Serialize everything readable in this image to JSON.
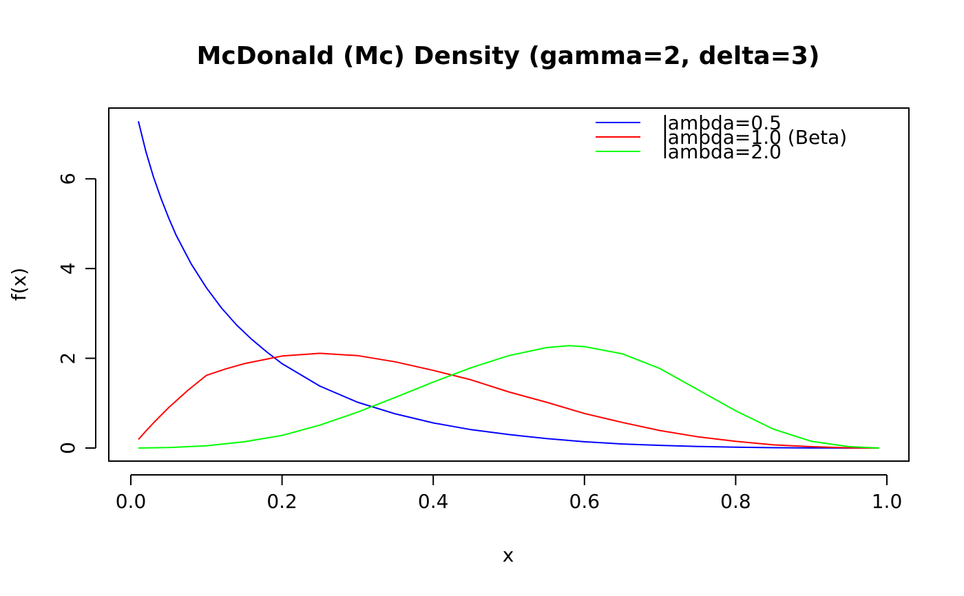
{
  "chart_data": {
    "type": "line",
    "title": "McDonald (Mc) Density (gamma=2, delta=3)",
    "xlabel": "x",
    "ylabel": "f(x)",
    "xlim": [
      0.0,
      1.0
    ],
    "ylim": [
      0,
      7.3
    ],
    "x_ticks": [
      "0.0",
      "0.2",
      "0.4",
      "0.6",
      "0.8",
      "1.0"
    ],
    "y_ticks": [
      "0",
      "2",
      "4",
      "6"
    ],
    "grid": false,
    "legend_position": "top-right",
    "series": [
      {
        "name": "lambda=0.5",
        "color": "#0000ff",
        "x": [
          0.01,
          0.02,
          0.03,
          0.04,
          0.05,
          0.06,
          0.08,
          0.1,
          0.12,
          0.14,
          0.16,
          0.18,
          0.2,
          0.25,
          0.3,
          0.35,
          0.4,
          0.45,
          0.5,
          0.55,
          0.6,
          0.65,
          0.7,
          0.75,
          0.8,
          0.85,
          0.9,
          0.95,
          0.99
        ],
        "y": [
          7.28,
          6.6,
          6.04,
          5.56,
          5.13,
          4.74,
          4.1,
          3.57,
          3.12,
          2.74,
          2.42,
          2.14,
          1.88,
          1.38,
          1.02,
          0.76,
          0.56,
          0.41,
          0.3,
          0.21,
          0.14,
          0.09,
          0.06,
          0.035,
          0.018,
          0.008,
          0.002,
          0.0002,
          0.0
        ]
      },
      {
        "name": "lambda=1.0 (Beta)",
        "color": "#ff0000",
        "x": [
          0.01,
          0.02,
          0.03,
          0.05,
          0.075,
          0.1,
          0.125,
          0.15,
          0.2,
          0.25,
          0.3,
          0.35,
          0.4,
          0.45,
          0.5,
          0.55,
          0.6,
          0.65,
          0.7,
          0.75,
          0.8,
          0.85,
          0.9,
          0.95,
          0.99
        ],
        "y": [
          0.19,
          0.38,
          0.56,
          0.9,
          1.28,
          1.62,
          1.76,
          1.88,
          2.05,
          2.11,
          2.06,
          1.92,
          1.73,
          1.52,
          1.25,
          1.02,
          0.77,
          0.57,
          0.39,
          0.25,
          0.15,
          0.07,
          0.03,
          0.005,
          0.0
        ]
      },
      {
        "name": "lambda=2.0",
        "color": "#00ff00",
        "x": [
          0.01,
          0.05,
          0.1,
          0.15,
          0.2,
          0.25,
          0.3,
          0.35,
          0.4,
          0.45,
          0.5,
          0.55,
          0.58,
          0.6,
          0.65,
          0.7,
          0.75,
          0.8,
          0.85,
          0.9,
          0.95,
          0.99
        ],
        "y": [
          0.0,
          0.01,
          0.05,
          0.14,
          0.28,
          0.51,
          0.8,
          1.13,
          1.47,
          1.79,
          2.06,
          2.24,
          2.28,
          2.26,
          2.1,
          1.77,
          1.3,
          0.83,
          0.42,
          0.15,
          0.03,
          0.0
        ]
      }
    ]
  }
}
